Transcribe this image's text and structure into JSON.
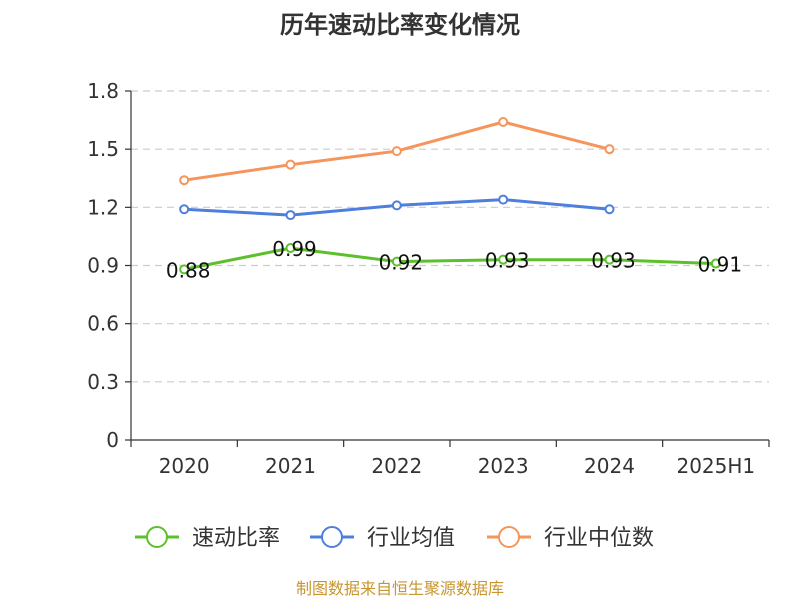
{
  "chart_data": {
    "type": "line",
    "title": "历年速动比率变化情况",
    "categories": [
      "2020",
      "2021",
      "2022",
      "2023",
      "2024",
      "2025H1"
    ],
    "ylim": [
      0,
      1.8
    ],
    "yticks": [
      "0",
      "0.3",
      "0.6",
      "0.9",
      "1.2",
      "1.5",
      "1.8"
    ],
    "grid": true,
    "legend_position": "bottom",
    "series": [
      {
        "name": "速动比率",
        "color": "#5cc02b",
        "values": [
          0.88,
          0.99,
          0.92,
          0.93,
          0.93,
          0.91
        ],
        "labels": [
          "0.88",
          "0.99",
          "0.92",
          "0.93",
          "0.93",
          "0.91"
        ]
      },
      {
        "name": "行业均值",
        "color": "#4f7fdc",
        "values": [
          1.19,
          1.16,
          1.21,
          1.24,
          1.19,
          null
        ]
      },
      {
        "name": "行业中位数",
        "color": "#f5955b",
        "values": [
          1.34,
          1.42,
          1.49,
          1.64,
          1.5,
          null
        ]
      }
    ]
  },
  "source": "制图数据来自恒生聚源数据库"
}
